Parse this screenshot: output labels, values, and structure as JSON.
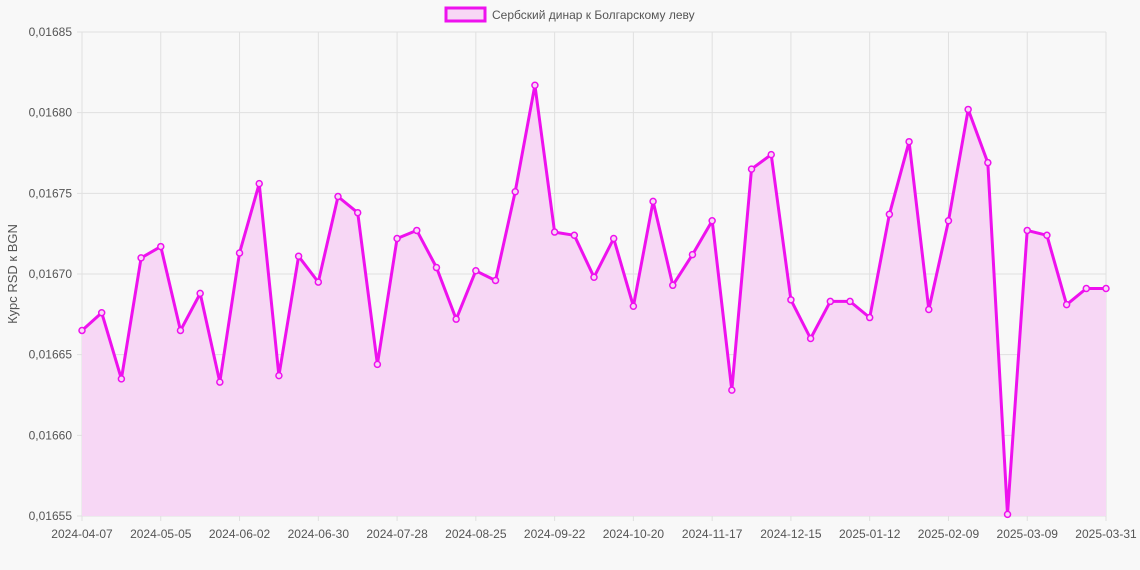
{
  "chart_data": {
    "type": "area",
    "title": "",
    "ylabel": "Курс RSD к BGN",
    "xlabel": "",
    "legend_position": "top",
    "grid": true,
    "ylim": [
      0.01655,
      0.01685
    ],
    "y_ticks": [
      "0,01655",
      "0,01660",
      "0,01665",
      "0,01670",
      "0,01675",
      "0,01680",
      "0,01685"
    ],
    "x_tick_labels": [
      "2024-04-07",
      "2024-05-05",
      "2024-06-02",
      "2024-06-30",
      "2024-07-28",
      "2024-08-25",
      "2024-09-22",
      "2024-10-20",
      "2024-11-17",
      "2024-12-15",
      "2025-01-12",
      "2025-02-09",
      "2025-03-09",
      "2025-03-31"
    ],
    "categories": [
      "2024-04-07",
      "2024-04-14",
      "2024-04-21",
      "2024-04-28",
      "2024-05-05",
      "2024-05-12",
      "2024-05-19",
      "2024-05-26",
      "2024-06-02",
      "2024-06-09",
      "2024-06-16",
      "2024-06-23",
      "2024-06-30",
      "2024-07-07",
      "2024-07-14",
      "2024-07-21",
      "2024-07-28",
      "2024-08-04",
      "2024-08-11",
      "2024-08-18",
      "2024-08-25",
      "2024-09-01",
      "2024-09-08",
      "2024-09-15",
      "2024-09-22",
      "2024-09-29",
      "2024-10-06",
      "2024-10-13",
      "2024-10-20",
      "2024-10-27",
      "2024-11-03",
      "2024-11-10",
      "2024-11-17",
      "2024-11-24",
      "2024-12-01",
      "2024-12-08",
      "2024-12-15",
      "2024-12-22",
      "2024-12-29",
      "2025-01-05",
      "2025-01-12",
      "2025-01-19",
      "2025-01-26",
      "2025-02-02",
      "2025-02-09",
      "2025-02-16",
      "2025-02-23",
      "2025-03-02",
      "2025-03-09",
      "2025-03-16",
      "2025-03-23",
      "2025-03-30",
      "2025-03-31"
    ],
    "series": [
      {
        "name": "Сербский динар к Болгарскому леву",
        "color": "#ee11ee",
        "fill": "#f7d7f5",
        "values": [
          0.016665,
          0.016676,
          0.016635,
          0.01671,
          0.016717,
          0.016665,
          0.016688,
          0.016633,
          0.016713,
          0.016756,
          0.016637,
          0.016711,
          0.016695,
          0.016748,
          0.016738,
          0.016644,
          0.016722,
          0.016727,
          0.016704,
          0.016672,
          0.016702,
          0.016696,
          0.016751,
          0.016817,
          0.016726,
          0.016724,
          0.016698,
          0.016722,
          0.01668,
          0.016745,
          0.016693,
          0.016712,
          0.016733,
          0.016628,
          0.016765,
          0.016774,
          0.016684,
          0.01666,
          0.016683,
          0.016683,
          0.016673,
          0.016737,
          0.016782,
          0.016678,
          0.016733,
          0.016802,
          0.016769,
          0.016551,
          0.016727,
          0.016724,
          0.016681,
          0.016691,
          0.016691
        ]
      }
    ]
  }
}
